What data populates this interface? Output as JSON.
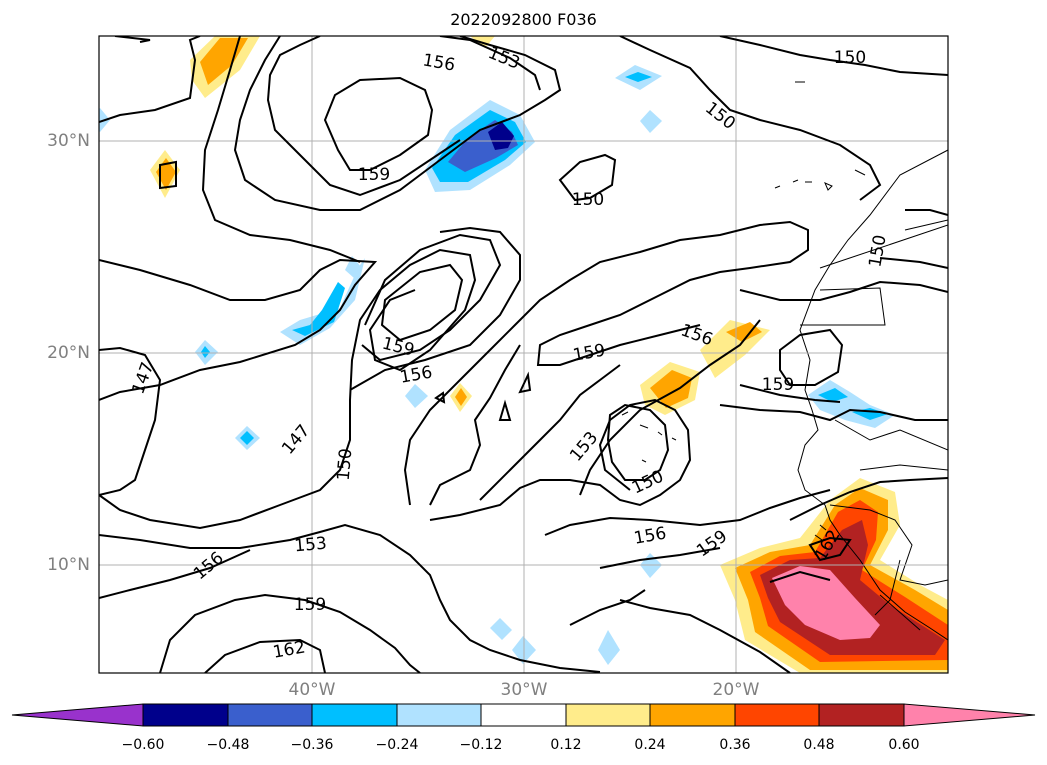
{
  "title": "2022092800 F036",
  "latitudes": [
    {
      "label": "30°N"
    },
    {
      "label": "20°N"
    },
    {
      "label": "10°N"
    }
  ],
  "longitudes": [
    {
      "label": "40°W"
    },
    {
      "label": "30°W"
    },
    {
      "label": "20°W"
    }
  ],
  "contour_labels": [
    {
      "text": "156"
    },
    {
      "text": "153"
    },
    {
      "text": "150"
    },
    {
      "text": "150"
    },
    {
      "text": "159"
    },
    {
      "text": "150"
    },
    {
      "text": "150"
    },
    {
      "text": "147"
    },
    {
      "text": "159"
    },
    {
      "text": "156"
    },
    {
      "text": "159"
    },
    {
      "text": "156"
    },
    {
      "text": "159"
    },
    {
      "text": "147"
    },
    {
      "text": "150"
    },
    {
      "text": "153"
    },
    {
      "text": "150"
    },
    {
      "text": "153"
    },
    {
      "text": "156"
    },
    {
      "text": "156"
    },
    {
      "text": "159"
    },
    {
      "text": "159"
    },
    {
      "text": "162"
    },
    {
      "text": "162"
    }
  ],
  "colorbar": {
    "colors": [
      "#9932cc",
      "#00008b",
      "#3a5fcd",
      "#00bfff",
      "#b0e2ff",
      "#ffffff",
      "#ffec8b",
      "#ffa500",
      "#ff4500",
      "#b22222",
      "#ff82ab",
      "#ff82ab"
    ],
    "tick_labels": [
      "−0.60",
      "−0.48",
      "−0.36",
      "−0.24",
      "−0.12",
      "0.12",
      "0.24",
      "0.36",
      "0.48",
      "0.60"
    ]
  }
}
